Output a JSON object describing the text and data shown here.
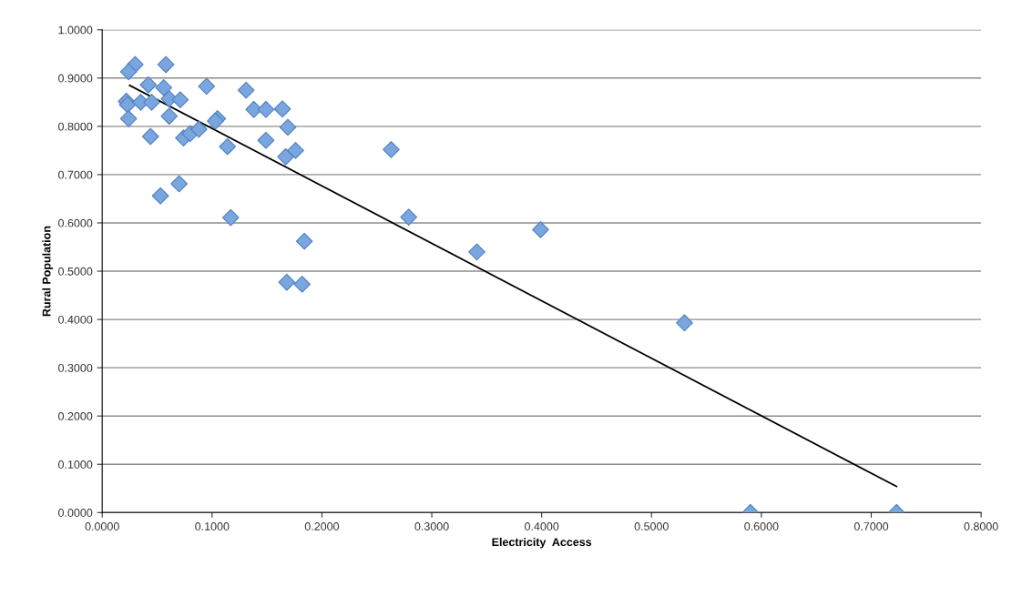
{
  "chart_data": {
    "type": "scatter",
    "xlabel": "Electricity  Access",
    "ylabel": "Rural Population",
    "xlim": [
      0,
      0.8
    ],
    "ylim": [
      0,
      1.0
    ],
    "xticks": [
      {
        "value": 0,
        "label": "0.0000"
      },
      {
        "value": 0.1,
        "label": "0.1000"
      },
      {
        "value": 0.2,
        "label": "0.2000"
      },
      {
        "value": 0.3,
        "label": "0.3000"
      },
      {
        "value": 0.4,
        "label": "0.4000"
      },
      {
        "value": 0.5,
        "label": "0.5000"
      },
      {
        "value": 0.6,
        "label": "0.6000"
      },
      {
        "value": 0.7,
        "label": "0.7000"
      },
      {
        "value": 0.8,
        "label": "0.8000"
      }
    ],
    "yticks": [
      {
        "value": 0,
        "label": "0.0000"
      },
      {
        "value": 0.1,
        "label": "0.1000"
      },
      {
        "value": 0.2,
        "label": "0.2000"
      },
      {
        "value": 0.3,
        "label": "0.3000"
      },
      {
        "value": 0.4,
        "label": "0.4000"
      },
      {
        "value": 0.5,
        "label": "0.5000"
      },
      {
        "value": 0.6,
        "label": "0.6000"
      },
      {
        "value": 0.7,
        "label": "0.7000"
      },
      {
        "value": 0.8,
        "label": "0.8000"
      },
      {
        "value": 0.9,
        "label": "0.9000"
      },
      {
        "value": 1.0,
        "label": "1.0000"
      }
    ],
    "grid": "y",
    "legend": false,
    "marker": "diamond",
    "series": [
      {
        "color": "#7aa6e0",
        "x": [
          0.03,
          0.024,
          0.058,
          0.042,
          0.056,
          0.095,
          0.131,
          0.022,
          0.023,
          0.035,
          0.045,
          0.061,
          0.071,
          0.061,
          0.024,
          0.105,
          0.103,
          0.138,
          0.149,
          0.164,
          0.169,
          0.044,
          0.074,
          0.08,
          0.088,
          0.114,
          0.149,
          0.167,
          0.176,
          0.07,
          0.053,
          0.117,
          0.184,
          0.168,
          0.182,
          0.263,
          0.279,
          0.341,
          0.399,
          0.53,
          0.59,
          0.723
        ],
        "values": [
          0.928,
          0.913,
          0.928,
          0.886,
          0.88,
          0.883,
          0.875,
          0.852,
          0.845,
          0.85,
          0.85,
          0.857,
          0.855,
          0.821,
          0.816,
          0.816,
          0.811,
          0.835,
          0.835,
          0.836,
          0.798,
          0.779,
          0.776,
          0.785,
          0.794,
          0.758,
          0.771,
          0.737,
          0.75,
          0.681,
          0.656,
          0.611,
          0.562,
          0.477,
          0.473,
          0.752,
          0.612,
          0.54,
          0.586,
          0.393,
          0.0,
          0.0
        ]
      },
      {
        "type": "line",
        "color": "#000000",
        "marker": "none",
        "x": [
          0.025,
          0.723
        ],
        "values": [
          0.885,
          0.054
        ]
      }
    ]
  }
}
